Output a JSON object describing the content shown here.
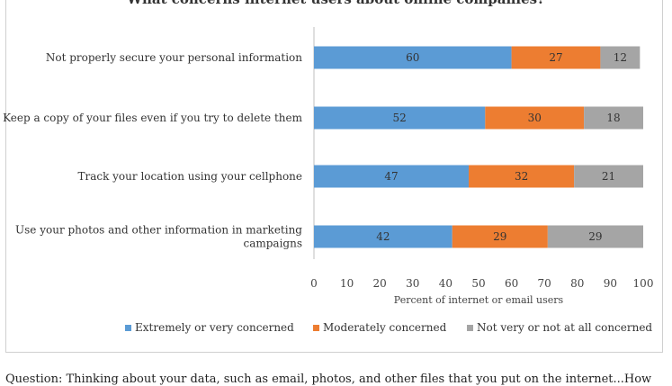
{
  "chart_data": {
    "type": "bar",
    "orientation": "horizontal",
    "stacked": true,
    "title": "What concerns internet users about online companies?",
    "categories": [
      [
        "Not properly secure your personal information"
      ],
      [
        "Keep a copy of your files even if you try to delete them"
      ],
      [
        "Track your location using your cellphone"
      ],
      [
        "Use your photos and other information in marketing",
        "campaigns"
      ]
    ],
    "series": [
      {
        "name": "Extremely or very concerned",
        "color": "#5B9BD5",
        "values": [
          60,
          52,
          47,
          42
        ]
      },
      {
        "name": "Moderately concerned",
        "color": "#ED7D31",
        "values": [
          27,
          30,
          32,
          29
        ]
      },
      {
        "name": "Not very or not at all concerned",
        "color": "#A5A5A5",
        "values": [
          12,
          18,
          21,
          29
        ]
      }
    ],
    "xlabel": "Percent of internet or email users",
    "xlim": [
      0,
      100
    ],
    "xticks": [
      0,
      10,
      20,
      30,
      40,
      50,
      60,
      70,
      80,
      90,
      100
    ],
    "legend_position": "bottom",
    "grid": false
  },
  "question_note": "Question: Thinking about your data, such as email, photos, and other files that you put on the internet...How"
}
